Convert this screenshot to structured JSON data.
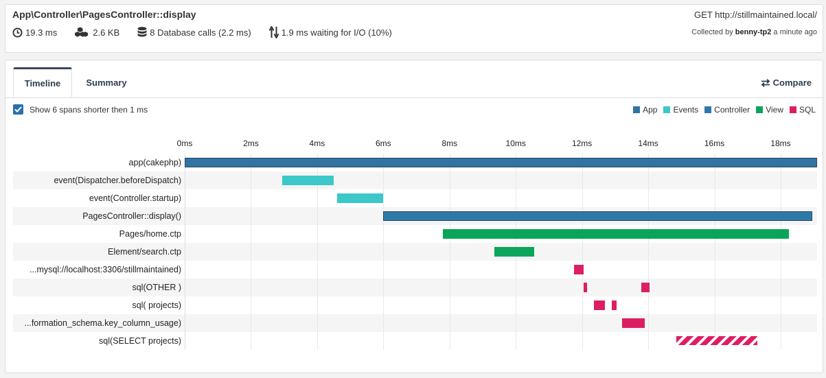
{
  "request": {
    "title": "App\\Controller\\PagesController::display",
    "duration": "19.3 ms",
    "memory": "2.6 KB",
    "db_calls": "8 Database calls (2.2 ms)",
    "io_wait": "1.9 ms waiting for I/O (10%)",
    "url": "GET http://stillmaintained.local/",
    "collected_prefix": "Collected by",
    "collected_by": "benny-tp2",
    "collected_when": "a minute ago"
  },
  "tabs": {
    "timeline": "Timeline",
    "summary": "Summary",
    "compare": "Compare"
  },
  "options": {
    "show_short_spans": "Show 6 spans shorter then 1 ms",
    "checked": true
  },
  "legend": [
    {
      "name": "App",
      "color": "#3273a0"
    },
    {
      "name": "Events",
      "color": "#3cc8c8"
    },
    {
      "name": "Controller",
      "color": "#2f79a8"
    },
    {
      "name": "View",
      "color": "#0aa55a"
    },
    {
      "name": "SQL",
      "color": "#dc1e64"
    }
  ],
  "chart_data": {
    "type": "gantt",
    "x_unit": "ms",
    "xlim": [
      0,
      19.1
    ],
    "ticks": [
      "0ms",
      "2ms",
      "4ms",
      "6ms",
      "8ms",
      "10ms",
      "12ms",
      "14ms",
      "16ms",
      "18ms"
    ],
    "tick_values": [
      0,
      2,
      4,
      6,
      8,
      10,
      12,
      14,
      16,
      18
    ],
    "rows": [
      {
        "label": "app(cakephp)",
        "category": "App",
        "spans": [
          [
            0,
            19.1
          ]
        ]
      },
      {
        "label": "event(Dispatcher.beforeDispatch)",
        "category": "Events",
        "spans": [
          [
            2.95,
            4.5
          ]
        ]
      },
      {
        "label": "event(Controller.startup)",
        "category": "Events",
        "spans": [
          [
            4.6,
            6.0
          ]
        ]
      },
      {
        "label": "PagesController::display()",
        "category": "Controller",
        "spans": [
          [
            6.0,
            18.95
          ]
        ]
      },
      {
        "label": "Pages/home.ctp",
        "category": "View",
        "spans": [
          [
            7.8,
            18.25
          ]
        ]
      },
      {
        "label": "Element/search.ctp",
        "category": "View",
        "spans": [
          [
            9.35,
            10.55
          ]
        ]
      },
      {
        "label": "...mysql://localhost:3306/stillmaintained)",
        "category": "SQL",
        "spans": [
          [
            11.75,
            12.05
          ]
        ]
      },
      {
        "label": "sql(OTHER )",
        "category": "SQL",
        "spans": [
          [
            12.05,
            12.15
          ],
          [
            13.8,
            14.05
          ]
        ]
      },
      {
        "label": "sql( projects)",
        "category": "SQL",
        "spans": [
          [
            12.35,
            12.7
          ],
          [
            12.9,
            13.05
          ]
        ]
      },
      {
        "label": "...formation_schema.key_column_usage)",
        "category": "SQL",
        "spans": [
          [
            13.2,
            13.9
          ]
        ]
      },
      {
        "label": "sql(SELECT projects)",
        "category": "SQL",
        "spans": [
          [
            14.85,
            17.3
          ]
        ],
        "style": "striped"
      }
    ]
  }
}
